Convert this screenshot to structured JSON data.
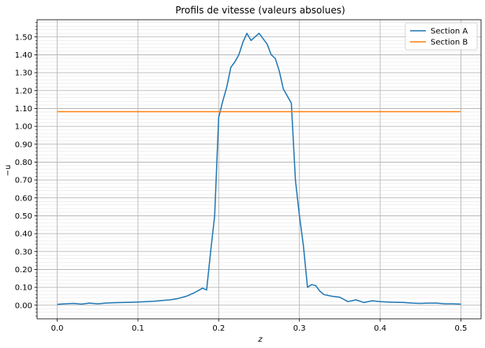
{
  "chart_data": {
    "type": "line",
    "title": "Profils de vitesse (valeurs absolues)",
    "xlabel": "z",
    "ylabel": "−u",
    "xlim": [
      -0.025,
      0.525
    ],
    "ylim": [
      -0.076,
      1.596
    ],
    "x_ticks": [
      0.0,
      0.1,
      0.2,
      0.3,
      0.4,
      0.5
    ],
    "x_tick_labels": [
      "0.0",
      "0.1",
      "0.2",
      "0.3",
      "0.4",
      "0.5"
    ],
    "y_ticks": [
      0.0,
      0.1,
      0.2,
      0.3,
      0.4,
      0.5,
      0.6,
      0.7,
      0.8,
      0.9,
      1.0,
      1.1,
      1.2,
      1.3,
      1.4,
      1.5
    ],
    "y_tick_labels": [
      "0.00",
      "0.10",
      "0.20",
      "0.30",
      "0.40",
      "0.50",
      "0.60",
      "0.70",
      "0.80",
      "0.90",
      "1.00",
      "1.10",
      "1.20",
      "1.30",
      "1.40",
      "1.50"
    ],
    "y_minor_step": 0.02,
    "grid": true,
    "legend_position": "top-right",
    "series": [
      {
        "name": "Section A",
        "color": "#1f77b4",
        "x": [
          0.0,
          0.01,
          0.02,
          0.03,
          0.04,
          0.05,
          0.06,
          0.07,
          0.08,
          0.09,
          0.1,
          0.11,
          0.12,
          0.13,
          0.14,
          0.15,
          0.16,
          0.17,
          0.18,
          0.185,
          0.19,
          0.195,
          0.2,
          0.205,
          0.21,
          0.215,
          0.22,
          0.225,
          0.23,
          0.235,
          0.24,
          0.25,
          0.26,
          0.265,
          0.27,
          0.275,
          0.28,
          0.285,
          0.29,
          0.295,
          0.3,
          0.305,
          0.31,
          0.315,
          0.32,
          0.325,
          0.33,
          0.34,
          0.35,
          0.36,
          0.37,
          0.38,
          0.39,
          0.4,
          0.41,
          0.42,
          0.43,
          0.44,
          0.45,
          0.46,
          0.47,
          0.48,
          0.49,
          0.5
        ],
        "y": [
          0.005,
          0.008,
          0.01,
          0.006,
          0.012,
          0.008,
          0.012,
          0.014,
          0.015,
          0.016,
          0.018,
          0.02,
          0.022,
          0.027,
          0.03,
          0.038,
          0.05,
          0.07,
          0.095,
          0.085,
          0.3,
          0.5,
          1.05,
          1.14,
          1.22,
          1.33,
          1.36,
          1.4,
          1.47,
          1.52,
          1.48,
          1.52,
          1.46,
          1.4,
          1.38,
          1.31,
          1.21,
          1.17,
          1.13,
          0.7,
          0.5,
          0.33,
          0.1,
          0.115,
          0.11,
          0.08,
          0.06,
          0.05,
          0.045,
          0.02,
          0.03,
          0.015,
          0.025,
          0.02,
          0.018,
          0.016,
          0.015,
          0.012,
          0.01,
          0.012,
          0.012,
          0.008,
          0.008,
          0.006
        ]
      },
      {
        "name": "Section B",
        "color": "#ff7f0e",
        "x": [
          0.0,
          0.5
        ],
        "y": [
          1.082,
          1.082
        ]
      }
    ]
  }
}
